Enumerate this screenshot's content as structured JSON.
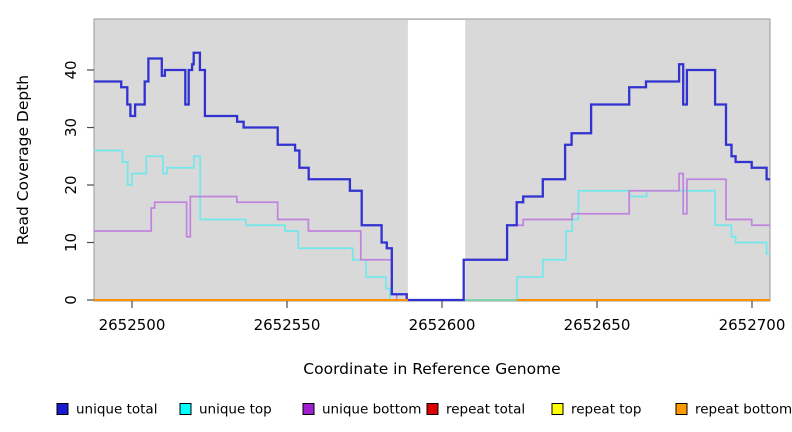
{
  "chart_data": {
    "type": "line",
    "subtype": "step-coverage",
    "title": "",
    "xlabel": "Coordinate in Reference Genome",
    "ylabel": "Read Coverage Depth",
    "x_ticks": [
      2652500,
      2652550,
      2652600,
      2652650,
      2652700
    ],
    "y_ticks": [
      0,
      10,
      20,
      30,
      40
    ],
    "xlim": [
      2652487.7,
      2652705.8
    ],
    "ylim": [
      0,
      49
    ],
    "grid": false,
    "panel_bg": "#d9d9d9",
    "panel_border": "#9a9a9a",
    "mask_region": {
      "x0": 2652589,
      "x1": 2652607.5,
      "color": "#ffffff"
    },
    "baseline_artifact": {
      "name": "baseline-green-segment",
      "x0": 2652607.5,
      "x1": 2652624.2,
      "y": 0,
      "color": "#7dce9b"
    },
    "legend_position": "bottom",
    "series": [
      {
        "name": "unique total",
        "line_color": "#3232d0",
        "legend_color": "#1a1ad1",
        "width": 2.3,
        "steps": [
          [
            2652487.7,
            38
          ],
          [
            2652496.5,
            37
          ],
          [
            2652498.5,
            34
          ],
          [
            2652499.5,
            32
          ],
          [
            2652501,
            34
          ],
          [
            2652504.1,
            38
          ],
          [
            2652505.3,
            42
          ],
          [
            2652509.6,
            39
          ],
          [
            2652510.6,
            40
          ],
          [
            2652517.2,
            34
          ],
          [
            2652518.3,
            40
          ],
          [
            2652519.4,
            41
          ],
          [
            2652519.9,
            43
          ],
          [
            2652521.9,
            40
          ],
          [
            2652523.5,
            32
          ],
          [
            2652533.9,
            31
          ],
          [
            2652536,
            30
          ],
          [
            2652547,
            27
          ],
          [
            2652552.6,
            26
          ],
          [
            2652554,
            23
          ],
          [
            2652557,
            21
          ],
          [
            2652570.3,
            19
          ],
          [
            2652574.1,
            13
          ],
          [
            2652580.5,
            10
          ],
          [
            2652582.2,
            9
          ],
          [
            2652583.8,
            1
          ],
          [
            2652588.6,
            0
          ],
          [
            2652607,
            7
          ],
          [
            2652621,
            13
          ],
          [
            2652624.1,
            17
          ],
          [
            2652626.2,
            18
          ],
          [
            2652632.5,
            21
          ],
          [
            2652639.7,
            27
          ],
          [
            2652641.8,
            29
          ],
          [
            2652648.1,
            34
          ],
          [
            2652660.4,
            37
          ],
          [
            2652665.8,
            38
          ],
          [
            2652676.5,
            41
          ],
          [
            2652677.8,
            34
          ],
          [
            2652679,
            40
          ],
          [
            2652688.1,
            34
          ],
          [
            2652691.6,
            27
          ],
          [
            2652693.4,
            25
          ],
          [
            2652694.7,
            24
          ],
          [
            2652699.9,
            23
          ],
          [
            2652704.7,
            21
          ]
        ]
      },
      {
        "name": "unique top",
        "line_color": "#73e8ec",
        "legend_color": "#00ffff",
        "width": 1.7,
        "steps": [
          [
            2652487.7,
            26
          ],
          [
            2652496.9,
            24
          ],
          [
            2652498.6,
            20
          ],
          [
            2652500,
            22
          ],
          [
            2652504.6,
            25
          ],
          [
            2652510,
            22
          ],
          [
            2652511.3,
            23
          ],
          [
            2652520,
            25
          ],
          [
            2652522,
            14
          ],
          [
            2652536.7,
            13
          ],
          [
            2652549.4,
            12
          ],
          [
            2652553.6,
            9
          ],
          [
            2652571.2,
            7
          ],
          [
            2652575.5,
            4
          ],
          [
            2652581.9,
            2
          ],
          [
            2652583.2,
            0
          ],
          [
            2652624.2,
            4
          ],
          [
            2652632.5,
            7
          ],
          [
            2652640,
            12
          ],
          [
            2652642,
            14
          ],
          [
            2652644,
            19
          ],
          [
            2652660.5,
            18
          ],
          [
            2652666,
            19
          ],
          [
            2652688.1,
            13
          ],
          [
            2652693.4,
            11
          ],
          [
            2652694.7,
            10
          ],
          [
            2652704.7,
            8
          ]
        ]
      },
      {
        "name": "unique bottom",
        "line_color": "#c083de",
        "legend_color": "#a020d0",
        "width": 1.7,
        "steps": [
          [
            2652487.7,
            12
          ],
          [
            2652506.2,
            16
          ],
          [
            2652507.3,
            17
          ],
          [
            2652517.6,
            11
          ],
          [
            2652518.8,
            18
          ],
          [
            2652533.8,
            17
          ],
          [
            2652547,
            14
          ],
          [
            2652556.9,
            12
          ],
          [
            2652573.8,
            7
          ],
          [
            2652583.8,
            1
          ],
          [
            2652585.4,
            0
          ],
          [
            2652607,
            7
          ],
          [
            2652621,
            13
          ],
          [
            2652626.2,
            14
          ],
          [
            2652642,
            15
          ],
          [
            2652660.4,
            19
          ],
          [
            2652676.5,
            22
          ],
          [
            2652677.8,
            15
          ],
          [
            2652679,
            21
          ],
          [
            2652691.6,
            14
          ],
          [
            2652699.9,
            13
          ]
        ]
      },
      {
        "name": "repeat total",
        "line_color": "#dd0000",
        "legend_color": "#dd0000",
        "width": 1.7,
        "segments": [
          [
            2652487.7,
            2652589,
            0
          ],
          [
            2652624.2,
            2652705.8,
            0
          ]
        ]
      },
      {
        "name": "repeat top",
        "line_color": "#ffff00",
        "legend_color": "#ffff00",
        "width": 1.7,
        "segments": [
          [
            2652487.7,
            2652589,
            0
          ],
          [
            2652624.2,
            2652705.8,
            0
          ]
        ]
      },
      {
        "name": "repeat bottom",
        "line_color": "#ff9000",
        "legend_color": "#ff9900",
        "width": 1.9,
        "segments": [
          [
            2652487.7,
            2652589,
            0
          ],
          [
            2652624.2,
            2652705.8,
            0
          ]
        ]
      }
    ]
  }
}
